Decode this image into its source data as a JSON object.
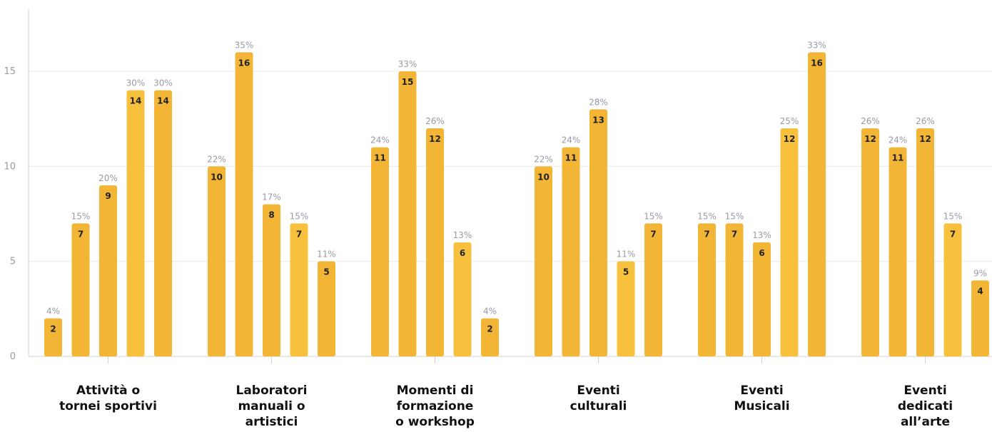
{
  "chart_data": {
    "type": "bar",
    "categories": [
      [
        "Attività o",
        "tornei sportivi"
      ],
      [
        "Laboratori",
        "manuali o",
        "artistici"
      ],
      [
        "Momenti di",
        "formazione",
        "o workshop"
      ],
      [
        "Eventi",
        "culturali"
      ],
      [
        "Eventi",
        "Musicali"
      ],
      [
        "Eventi",
        "dedicati",
        "all’arte"
      ]
    ],
    "values": [
      [
        2,
        7,
        9,
        14,
        14
      ],
      [
        10,
        16,
        8,
        7,
        5
      ],
      [
        11,
        15,
        12,
        6,
        2
      ],
      [
        10,
        11,
        13,
        5,
        7
      ],
      [
        7,
        7,
        6,
        12,
        16
      ],
      [
        12,
        11,
        12,
        7,
        4
      ]
    ],
    "percent_labels": [
      [
        "4%",
        "15%",
        "20%",
        "30%",
        "30%"
      ],
      [
        "22%",
        "35%",
        "17%",
        "15%",
        "11%"
      ],
      [
        "24%",
        "33%",
        "26%",
        "13%",
        "4%"
      ],
      [
        "22%",
        "24%",
        "28%",
        "11%",
        "15%"
      ],
      [
        "15%",
        "15%",
        "13%",
        "25%",
        "33%"
      ],
      [
        "26%",
        "24%",
        "26%",
        "15%",
        "9%"
      ]
    ],
    "y_ticks": [
      "0",
      "5",
      "10",
      "15"
    ],
    "ylim": [
      0,
      18.75
    ],
    "grid": true,
    "colors": [
      "#f2b536",
      "#f2b536",
      "#f2b536",
      "#f7c13e",
      "#f2b536"
    ]
  }
}
